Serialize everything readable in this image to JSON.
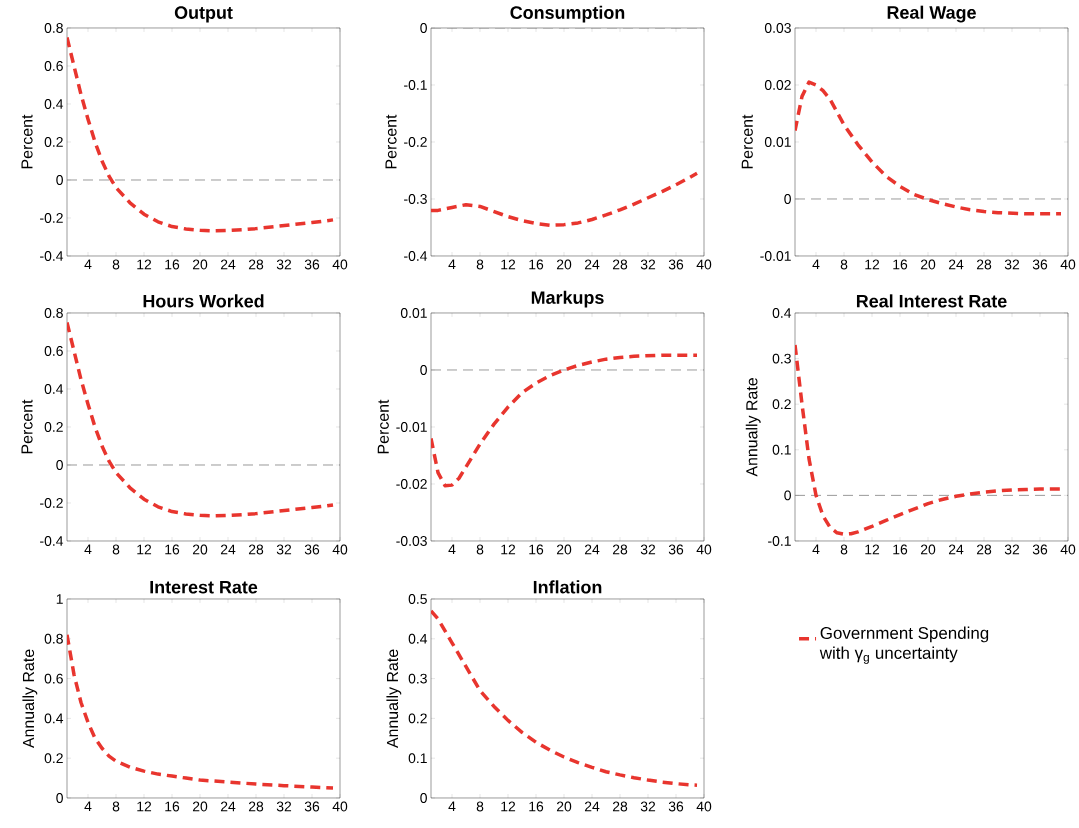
{
  "chart_data": [
    {
      "type": "line",
      "title": "Output",
      "ylabel": "Percent",
      "line_style": "dashed",
      "xlim": [
        1,
        40
      ],
      "ylim": [
        -0.4,
        0.8
      ],
      "xticks": [
        4,
        8,
        12,
        16,
        20,
        24,
        28,
        32,
        36,
        40
      ],
      "yticks": [
        -0.4,
        -0.2,
        0,
        0.2,
        0.4,
        0.6,
        0.8
      ],
      "ref_lines": [
        {
          "axis": "y",
          "value": 0,
          "color": "#808080",
          "line_style": "dashed"
        }
      ],
      "x": [
        1,
        2,
        3,
        4,
        5,
        6,
        7,
        8,
        10,
        12,
        14,
        16,
        18,
        20,
        22,
        24,
        26,
        28,
        30,
        32,
        34,
        36,
        38,
        39
      ],
      "series": [
        {
          "color": "#e8352e",
          "values": [
            0.75,
            0.6,
            0.45,
            0.32,
            0.2,
            0.1,
            0.02,
            -0.04,
            -0.12,
            -0.18,
            -0.22,
            -0.245,
            -0.258,
            -0.265,
            -0.268,
            -0.266,
            -0.262,
            -0.256,
            -0.248,
            -0.24,
            -0.232,
            -0.224,
            -0.215,
            -0.21
          ]
        }
      ]
    },
    {
      "type": "line",
      "title": "Consumption",
      "ylabel": "Percent",
      "line_style": "dashed",
      "xlim": [
        1,
        40
      ],
      "ylim": [
        -0.4,
        0
      ],
      "xticks": [
        4,
        8,
        12,
        16,
        20,
        24,
        28,
        32,
        36,
        40
      ],
      "yticks": [
        -0.4,
        -0.3,
        -0.2,
        -0.1,
        0
      ],
      "ref_lines": [
        {
          "axis": "y",
          "value": 0,
          "color": "#808080",
          "line_style": "dashed"
        }
      ],
      "x": [
        1,
        2,
        4,
        6,
        8,
        10,
        12,
        14,
        16,
        18,
        20,
        22,
        24,
        26,
        28,
        30,
        32,
        34,
        36,
        38,
        39
      ],
      "series": [
        {
          "color": "#e8352e",
          "values": [
            -0.32,
            -0.32,
            -0.315,
            -0.31,
            -0.313,
            -0.322,
            -0.331,
            -0.338,
            -0.343,
            -0.346,
            -0.345,
            -0.342,
            -0.336,
            -0.328,
            -0.319,
            -0.309,
            -0.298,
            -0.287,
            -0.275,
            -0.262,
            -0.255
          ]
        }
      ]
    },
    {
      "type": "line",
      "title": "Real Wage",
      "ylabel": "Percent",
      "line_style": "dashed",
      "xlim": [
        1,
        40
      ],
      "ylim": [
        -0.01,
        0.03
      ],
      "xticks": [
        4,
        8,
        12,
        16,
        20,
        24,
        28,
        32,
        36,
        40
      ],
      "yticks": [
        -0.01,
        0,
        0.01,
        0.02,
        0.03
      ],
      "ref_lines": [
        {
          "axis": "y",
          "value": 0,
          "color": "#808080",
          "line_style": "dashed"
        }
      ],
      "x": [
        1,
        2,
        3,
        4,
        5,
        6,
        8,
        10,
        12,
        14,
        16,
        18,
        20,
        22,
        24,
        26,
        28,
        30,
        32,
        34,
        36,
        38,
        39
      ],
      "series": [
        {
          "color": "#e8352e",
          "values": [
            0.012,
            0.018,
            0.0205,
            0.02,
            0.019,
            0.0175,
            0.013,
            0.0095,
            0.0065,
            0.004,
            0.0022,
            0.0008,
            -0.0001,
            -0.0008,
            -0.0014,
            -0.0019,
            -0.0022,
            -0.0024,
            -0.0025,
            -0.0026,
            -0.0026,
            -0.0026,
            -0.0026
          ]
        }
      ]
    },
    {
      "type": "line",
      "title": "Hours Worked",
      "ylabel": "Percent",
      "line_style": "dashed",
      "xlim": [
        1,
        40
      ],
      "ylim": [
        -0.4,
        0.8
      ],
      "xticks": [
        4,
        8,
        12,
        16,
        20,
        24,
        28,
        32,
        36,
        40
      ],
      "yticks": [
        -0.4,
        -0.2,
        0,
        0.2,
        0.4,
        0.6,
        0.8
      ],
      "ref_lines": [
        {
          "axis": "y",
          "value": 0,
          "color": "#808080",
          "line_style": "dashed"
        }
      ],
      "x": [
        1,
        2,
        3,
        4,
        5,
        6,
        7,
        8,
        10,
        12,
        14,
        16,
        18,
        20,
        22,
        24,
        26,
        28,
        30,
        32,
        34,
        36,
        38,
        39
      ],
      "series": [
        {
          "color": "#e8352e",
          "values": [
            0.75,
            0.6,
            0.45,
            0.32,
            0.2,
            0.1,
            0.02,
            -0.04,
            -0.12,
            -0.18,
            -0.22,
            -0.245,
            -0.258,
            -0.265,
            -0.268,
            -0.266,
            -0.262,
            -0.256,
            -0.248,
            -0.24,
            -0.232,
            -0.224,
            -0.215,
            -0.21
          ]
        }
      ]
    },
    {
      "type": "line",
      "title": "Markups",
      "ylabel": "Percent",
      "line_style": "dashed",
      "xlim": [
        1,
        40
      ],
      "ylim": [
        -0.03,
        0.01
      ],
      "xticks": [
        4,
        8,
        12,
        16,
        20,
        24,
        28,
        32,
        36,
        40
      ],
      "yticks": [
        -0.03,
        -0.02,
        -0.01,
        0,
        0.01
      ],
      "ref_lines": [
        {
          "axis": "y",
          "value": 0,
          "color": "#808080",
          "line_style": "dashed"
        }
      ],
      "x": [
        1,
        2,
        3,
        4,
        5,
        6,
        8,
        10,
        12,
        14,
        16,
        18,
        20,
        22,
        24,
        26,
        28,
        30,
        32,
        34,
        36,
        38,
        39
      ],
      "series": [
        {
          "color": "#e8352e",
          "values": [
            -0.012,
            -0.018,
            -0.0203,
            -0.0202,
            -0.019,
            -0.017,
            -0.013,
            -0.0095,
            -0.0065,
            -0.004,
            -0.0023,
            -0.001,
            0,
            0.0008,
            0.0014,
            0.0019,
            0.0022,
            0.0024,
            0.0025,
            0.0026,
            0.0026,
            0.0026,
            0.0026
          ]
        }
      ]
    },
    {
      "type": "line",
      "title": "Real Interest Rate",
      "ylabel": "Annually Rate",
      "line_style": "dashed",
      "xlim": [
        1,
        40
      ],
      "ylim": [
        -0.1,
        0.4
      ],
      "xticks": [
        4,
        8,
        12,
        16,
        20,
        24,
        28,
        32,
        36,
        40
      ],
      "yticks": [
        -0.1,
        0,
        0.1,
        0.2,
        0.3,
        0.4
      ],
      "ref_lines": [
        {
          "axis": "y",
          "value": 0,
          "color": "#808080",
          "line_style": "dashed"
        }
      ],
      "x": [
        1,
        2,
        3,
        4,
        5,
        6,
        7,
        8,
        9,
        10,
        12,
        14,
        16,
        18,
        20,
        22,
        24,
        26,
        28,
        30,
        32,
        34,
        36,
        38,
        39
      ],
      "series": [
        {
          "color": "#e8352e",
          "values": [
            0.33,
            0.2,
            0.08,
            0.0,
            -0.045,
            -0.07,
            -0.082,
            -0.085,
            -0.084,
            -0.08,
            -0.068,
            -0.055,
            -0.042,
            -0.03,
            -0.018,
            -0.009,
            -0.002,
            0.003,
            0.007,
            0.01,
            0.012,
            0.013,
            0.014,
            0.014,
            0.014
          ]
        }
      ]
    },
    {
      "type": "line",
      "title": "Interest Rate",
      "ylabel": "Annually Rate",
      "line_style": "dashed",
      "xlim": [
        1,
        40
      ],
      "ylim": [
        0,
        1
      ],
      "xticks": [
        4,
        8,
        12,
        16,
        20,
        24,
        28,
        32,
        36,
        40
      ],
      "yticks": [
        0,
        0.2,
        0.4,
        0.6,
        0.8,
        1
      ],
      "x": [
        1,
        2,
        3,
        4,
        5,
        6,
        7,
        8,
        10,
        12,
        14,
        16,
        18,
        20,
        24,
        28,
        32,
        36,
        39
      ],
      "series": [
        {
          "color": "#e8352e",
          "values": [
            0.82,
            0.62,
            0.48,
            0.38,
            0.3,
            0.25,
            0.21,
            0.185,
            0.155,
            0.135,
            0.12,
            0.11,
            0.1,
            0.09,
            0.08,
            0.07,
            0.062,
            0.055,
            0.05
          ]
        }
      ]
    },
    {
      "type": "line",
      "title": "Inflation",
      "ylabel": "Annually Rate",
      "line_style": "dashed",
      "legend": "right",
      "xlim": [
        1,
        40
      ],
      "ylim": [
        0,
        0.5
      ],
      "xticks": [
        4,
        8,
        12,
        16,
        20,
        24,
        28,
        32,
        36,
        40
      ],
      "yticks": [
        0,
        0.1,
        0.2,
        0.3,
        0.4,
        0.5
      ],
      "x": [
        1,
        2,
        4,
        6,
        8,
        10,
        12,
        14,
        16,
        18,
        20,
        22,
        24,
        26,
        28,
        30,
        32,
        34,
        36,
        38,
        39
      ],
      "series": [
        {
          "name": "Government Spending with γ$_{g}$ uncertainty",
          "color": "#e8352e",
          "values": [
            0.47,
            0.45,
            0.39,
            0.33,
            0.27,
            0.23,
            0.195,
            0.165,
            0.14,
            0.12,
            0.103,
            0.089,
            0.077,
            0.066,
            0.058,
            0.051,
            0.045,
            0.04,
            0.036,
            0.033,
            0.032
          ]
        }
      ]
    }
  ]
}
